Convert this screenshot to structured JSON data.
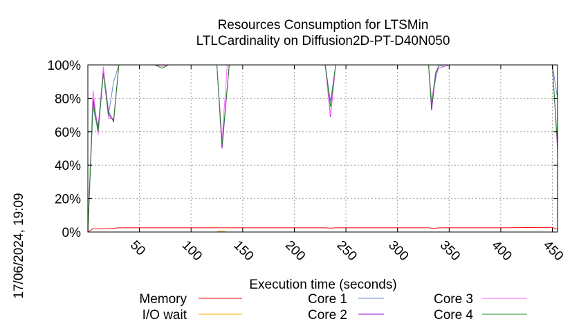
{
  "chart_data": {
    "type": "line",
    "title": "Resources Consumption for LTSMin",
    "subtitle": "LTLCardinality on Diffusion2D-PT-D40N050",
    "xlabel": "Execution time (seconds)",
    "ylabel": "",
    "timestamp": "17/06/2024, 19:09",
    "xlim": [
      0,
      455
    ],
    "ylim": [
      0,
      100
    ],
    "x_ticks": [
      50,
      100,
      150,
      200,
      250,
      300,
      350,
      400,
      450
    ],
    "x_tick_labels": [
      "50",
      "100",
      "150",
      "200",
      "250",
      "300",
      "350",
      "400",
      "450"
    ],
    "y_ticks": [
      0,
      20,
      40,
      60,
      80,
      100
    ],
    "y_tick_labels": [
      "0%",
      "20%",
      "40%",
      "60%",
      "80%",
      "100%"
    ],
    "grid": true,
    "legend_position": "bottom",
    "series": [
      {
        "name": "Memory",
        "color": "#ff0000",
        "x": [
          0,
          5,
          10,
          20,
          30,
          40,
          60,
          80,
          100,
          120,
          127,
          135,
          150,
          200,
          230,
          235,
          240,
          300,
          330,
          335,
          340,
          400,
          450,
          455
        ],
        "y": [
          0,
          2,
          2,
          2,
          2.5,
          2.5,
          2.5,
          2.5,
          2.5,
          2.5,
          2.5,
          2.5,
          2.5,
          2.5,
          2.5,
          2.3,
          2.5,
          2.5,
          2.5,
          2.2,
          2.5,
          2.5,
          2.8,
          1.5
        ]
      },
      {
        "name": "I/O wait",
        "color": "#ffa500",
        "x": [
          0,
          125,
          128,
          131,
          134,
          455
        ],
        "y": [
          0,
          0,
          0.5,
          0.5,
          0,
          0
        ]
      },
      {
        "name": "Core 1",
        "color": "#6a86c8",
        "x": [
          0,
          5,
          10,
          15,
          20,
          25,
          30,
          130,
          135,
          230,
          235,
          240,
          330,
          333,
          337,
          340,
          345,
          350,
          450,
          455
        ],
        "y": [
          0,
          75,
          60,
          95,
          70,
          90,
          100,
          100,
          100,
          100,
          78,
          100,
          100,
          78,
          92,
          100,
          99,
          100,
          100,
          80
        ]
      },
      {
        "name": "Core 2",
        "color": "#9400d3",
        "x": [
          0,
          5,
          10,
          15,
          20,
          25,
          30,
          125,
          130,
          137,
          230,
          235,
          240,
          330,
          333,
          337,
          340,
          350,
          450,
          455
        ],
        "y": [
          0,
          80,
          62,
          98,
          72,
          66,
          100,
          100,
          50,
          100,
          100,
          69,
          100,
          100,
          73,
          95,
          98,
          100,
          100,
          49
        ]
      },
      {
        "name": "Core 3",
        "color": "#ff66ff",
        "x": [
          0,
          5,
          10,
          15,
          20,
          25,
          30,
          65,
          72,
          78,
          125,
          130,
          135,
          230,
          235,
          240,
          330,
          333,
          337,
          340,
          350,
          450,
          455
        ],
        "y": [
          0,
          85,
          58,
          99,
          68,
          68,
          100,
          100,
          99,
          100,
          100,
          55,
          100,
          100,
          70,
          100,
          100,
          78,
          96,
          98,
          100,
          100,
          50
        ]
      },
      {
        "name": "Core 4",
        "color": "#228b22",
        "x": [
          0,
          5,
          10,
          15,
          20,
          25,
          30,
          65,
          72,
          78,
          125,
          130,
          137,
          230,
          235,
          240,
          330,
          333,
          337,
          340,
          350,
          450,
          455
        ],
        "y": [
          0,
          78,
          60,
          95,
          70,
          67,
          100,
          100,
          98,
          100,
          100,
          52,
          100,
          100,
          75,
          100,
          100,
          75,
          95,
          100,
          100,
          100,
          52
        ]
      }
    ]
  }
}
